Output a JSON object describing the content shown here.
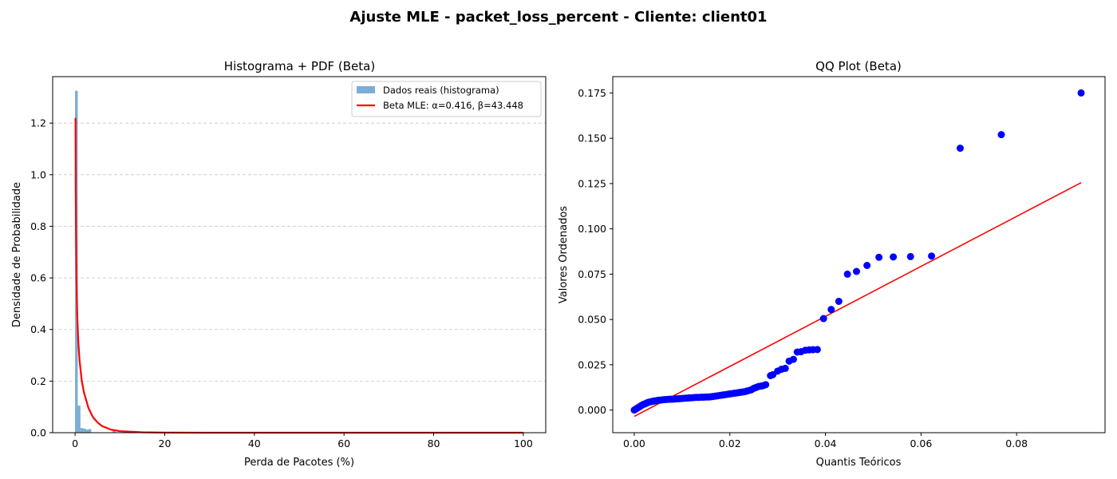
{
  "figure": {
    "suptitle": "Ajuste MLE - packet_loss_percent - Cliente: client01"
  },
  "chart_data": [
    {
      "type": "bar",
      "title": "Histograma + PDF (Beta)",
      "xlabel": "Perda de Pacotes (%)",
      "ylabel": "Densidade de Probabilidade",
      "xlim": [
        -5,
        105
      ],
      "ylim": [
        0,
        1.38
      ],
      "xticks": [
        0,
        20,
        40,
        60,
        80,
        100
      ],
      "xtick_labels": [
        "0",
        "20",
        "40",
        "60",
        "80",
        "100"
      ],
      "yticks": [
        0.0,
        0.2,
        0.4,
        0.6,
        0.8,
        1.0,
        1.2
      ],
      "ytick_labels": [
        "0.0",
        "0.2",
        "0.4",
        "0.6",
        "0.8",
        "1.0",
        "1.2"
      ],
      "grid": "y-dashed",
      "legend_position": "upper-right",
      "histogram": {
        "name": "Dados reais (histograma)",
        "color": "#7aaed4",
        "bin_edges": [
          0.0,
          0.6,
          1.2,
          1.8,
          2.4,
          3.0,
          3.6,
          4.2,
          4.8,
          5.4,
          6.0,
          6.6,
          7.2,
          7.8,
          8.4,
          9.0
        ],
        "densities": [
          1.325,
          0.105,
          0.018,
          0.016,
          0.012,
          0.014,
          0.0,
          0.0,
          0.0,
          0.0,
          0.0,
          0.0,
          0.0,
          0.0,
          0.012
        ]
      },
      "pdf_line": {
        "name": "Beta MLE: α=0.416, β=43.448",
        "color": "#ff0000",
        "x": [
          0.1,
          0.15,
          0.2,
          0.3,
          0.4,
          0.5,
          0.7,
          1.0,
          1.5,
          2.0,
          3.0,
          4.0,
          5.0,
          6.0,
          8.0,
          10.0,
          15.0,
          20.0,
          30.0,
          40.0,
          60.0,
          80.0,
          100.0
        ],
        "y": [
          1.22,
          0.95,
          0.8,
          0.62,
          0.52,
          0.45,
          0.36,
          0.28,
          0.2,
          0.155,
          0.095,
          0.06,
          0.04,
          0.026,
          0.012,
          0.006,
          0.0015,
          0.0004,
          0.0,
          0.0,
          0.0,
          0.0,
          0.0
        ]
      }
    },
    {
      "type": "scatter",
      "title": "QQ Plot (Beta)",
      "xlabel": "Quantis Teóricos",
      "ylabel": "Valores Ordenados",
      "xlim": [
        -0.0045,
        0.0985
      ],
      "ylim": [
        -0.0125,
        0.184
      ],
      "xticks": [
        0.0,
        0.02,
        0.04,
        0.06,
        0.08
      ],
      "xtick_labels": [
        "0.00",
        "0.02",
        "0.04",
        "0.06",
        "0.08"
      ],
      "yticks": [
        0.0,
        0.025,
        0.05,
        0.075,
        0.1,
        0.125,
        0.15,
        0.175
      ],
      "ytick_labels": [
        "0.000",
        "0.025",
        "0.050",
        "0.075",
        "0.100",
        "0.125",
        "0.150",
        "0.175"
      ],
      "point_color": "#0000ff",
      "fit_line": {
        "color": "#ff0000",
        "x": [
          0.0,
          0.0935
        ],
        "y": [
          -0.0035,
          0.1255
        ]
      },
      "points": {
        "x": [
          0.0,
          0.0003,
          0.0006,
          0.0009,
          0.0012,
          0.0015,
          0.0018,
          0.0021,
          0.0024,
          0.0027,
          0.003,
          0.0034,
          0.0038,
          0.0042,
          0.0046,
          0.005,
          0.0055,
          0.006,
          0.0065,
          0.007,
          0.0075,
          0.008,
          0.0085,
          0.009,
          0.0095,
          0.01,
          0.0105,
          0.011,
          0.0115,
          0.012,
          0.0125,
          0.013,
          0.0135,
          0.014,
          0.0145,
          0.015,
          0.0155,
          0.016,
          0.0165,
          0.017,
          0.0175,
          0.018,
          0.0185,
          0.019,
          0.0195,
          0.02,
          0.0205,
          0.021,
          0.0215,
          0.022,
          0.0225,
          0.023,
          0.0235,
          0.024,
          0.0245,
          0.025,
          0.0255,
          0.026,
          0.0265,
          0.027,
          0.0275,
          0.0285,
          0.029,
          0.03,
          0.0308,
          0.0316,
          0.0324,
          0.0333,
          0.0341,
          0.0349,
          0.0358,
          0.0366,
          0.0374,
          0.0383,
          0.0396,
          0.0412,
          0.0428,
          0.0446,
          0.0465,
          0.0487,
          0.0512,
          0.0542,
          0.0578,
          0.0622,
          0.0682,
          0.0768,
          0.0935
        ],
        "y": [
          0.0,
          0.0005,
          0.001,
          0.0015,
          0.002,
          0.0025,
          0.003,
          0.0033,
          0.0036,
          0.004,
          0.0043,
          0.0046,
          0.0048,
          0.005,
          0.0052,
          0.0054,
          0.0055,
          0.0057,
          0.0058,
          0.0059,
          0.006,
          0.006,
          0.0061,
          0.0062,
          0.0063,
          0.0064,
          0.0065,
          0.0066,
          0.0067,
          0.0068,
          0.0069,
          0.007,
          0.007,
          0.0071,
          0.0071,
          0.0072,
          0.0072,
          0.0073,
          0.0075,
          0.0077,
          0.0079,
          0.0081,
          0.0083,
          0.0085,
          0.0087,
          0.0089,
          0.0091,
          0.0093,
          0.0095,
          0.0097,
          0.0099,
          0.0101,
          0.0104,
          0.0108,
          0.0112,
          0.012,
          0.0125,
          0.013,
          0.0132,
          0.0135,
          0.014,
          0.019,
          0.0195,
          0.0215,
          0.0225,
          0.023,
          0.027,
          0.028,
          0.032,
          0.0322,
          0.033,
          0.0332,
          0.0333,
          0.0334,
          0.0505,
          0.0555,
          0.06,
          0.075,
          0.0765,
          0.0798,
          0.0843,
          0.0845,
          0.0847,
          0.085,
          0.1445,
          0.152,
          0.175
        ]
      }
    }
  ]
}
